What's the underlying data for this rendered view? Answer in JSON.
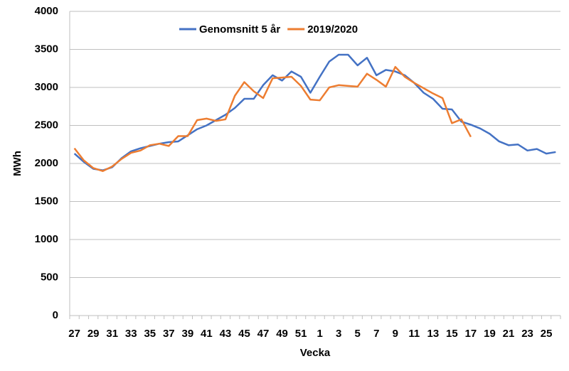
{
  "chart_data": {
    "type": "line",
    "x_label": "Vecka",
    "y_label": "MWh",
    "categories": [
      "27",
      null,
      "29",
      null,
      "31",
      null,
      "33",
      null,
      "35",
      null,
      "37",
      null,
      "39",
      null,
      "41",
      null,
      "43",
      null,
      "45",
      null,
      "47",
      null,
      "49",
      null,
      "51",
      null,
      "1",
      null,
      "3",
      null,
      "5",
      null,
      "7",
      null,
      "9",
      null,
      "11",
      null,
      "13",
      null,
      "15",
      null,
      "17",
      null,
      "19",
      null,
      "21",
      null,
      "23",
      null,
      "25",
      null
    ],
    "series": [
      {
        "name": "Genomsnitt 5 år",
        "color": "#4472c4",
        "values": [
          2130,
          2020,
          1930,
          1910,
          1950,
          2070,
          2160,
          2200,
          2230,
          2260,
          2280,
          2290,
          2370,
          2450,
          2500,
          2570,
          2640,
          2730,
          2850,
          2850,
          3030,
          3160,
          3090,
          3210,
          3140,
          2930,
          3140,
          3340,
          3430,
          3430,
          3290,
          3390,
          3160,
          3230,
          3210,
          3160,
          3060,
          2930,
          2850,
          2720,
          2710,
          2550,
          2510,
          2460,
          2390,
          2290,
          2240,
          2250,
          2170,
          2190,
          2130,
          2150
        ]
      },
      {
        "name": "2019/2020",
        "color": "#ed7d31",
        "values": [
          2200,
          2040,
          1940,
          1900,
          1960,
          2060,
          2140,
          2170,
          2240,
          2260,
          2230,
          2360,
          2360,
          2570,
          2590,
          2560,
          2580,
          2890,
          3070,
          2950,
          2860,
          3120,
          3130,
          3140,
          3020,
          2840,
          2830,
          3000,
          3030,
          3020,
          3010,
          3180,
          3100,
          3010,
          3270,
          3140,
          3060,
          2990,
          2920,
          2860,
          2530,
          2580,
          2350,
          null,
          null,
          null,
          null,
          null,
          null,
          null,
          null,
          null
        ]
      }
    ],
    "ylim": [
      0,
      4000
    ],
    "yticks": [
      0,
      500,
      1000,
      1500,
      2000,
      2500,
      3000,
      3500,
      4000
    ],
    "grid": true,
    "legend": "top"
  }
}
